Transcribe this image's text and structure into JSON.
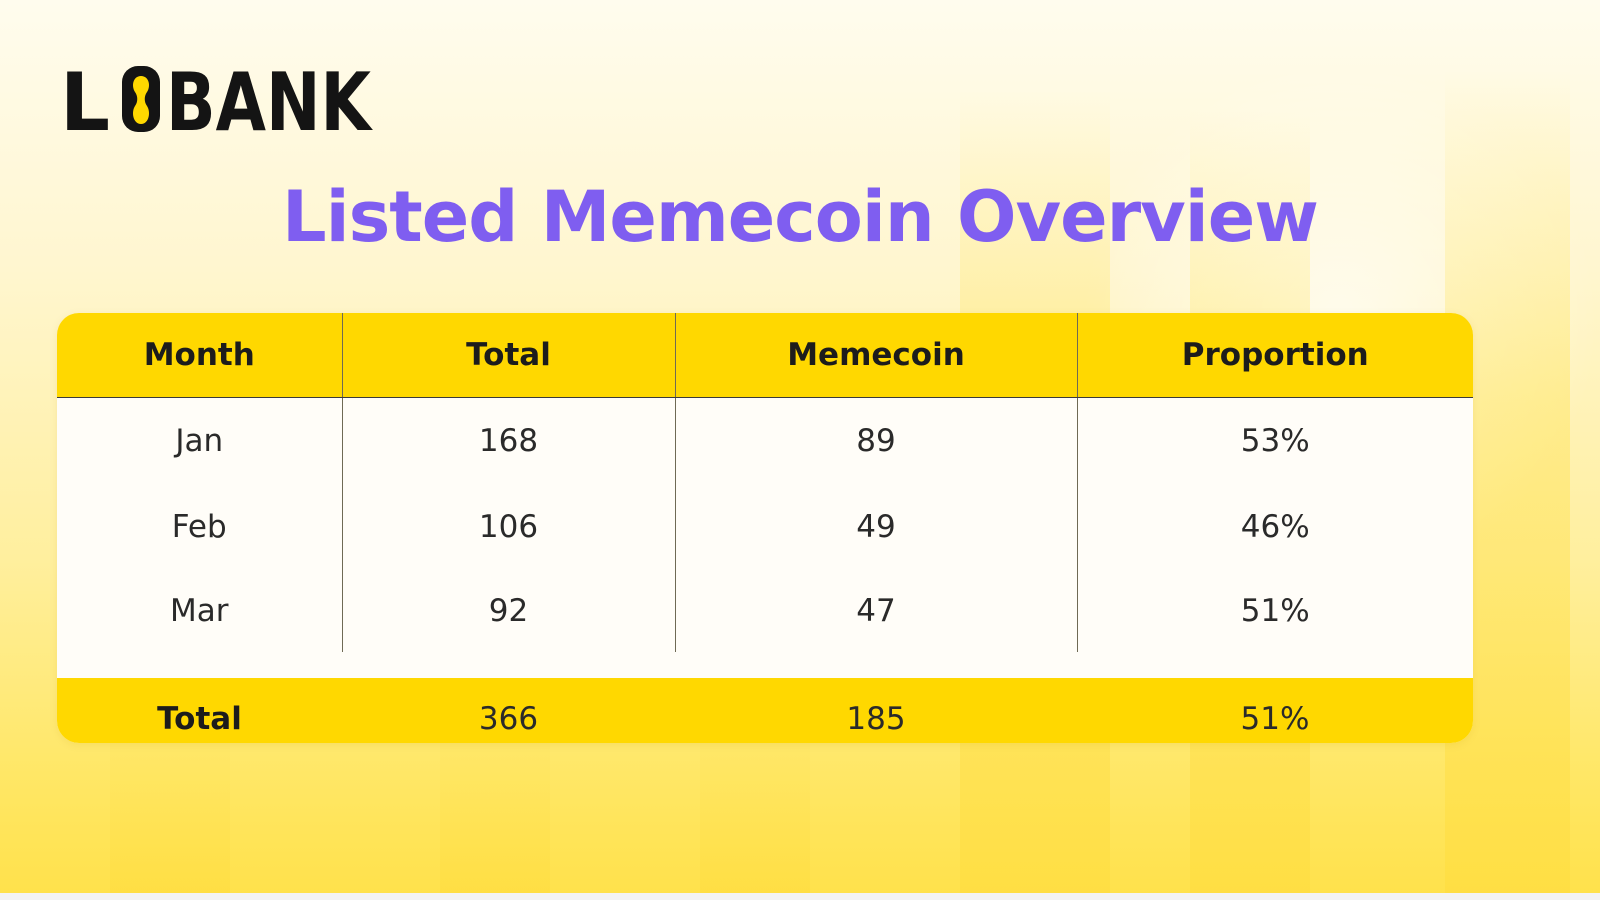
{
  "brand": {
    "name": "LBANK",
    "accent_color": "#FFD800"
  },
  "title": "Listed Memecoin Overview",
  "colors": {
    "title": "#7F5EF0",
    "header_bg": "#FFD800",
    "body_bg": "#FFFDF8",
    "total_bg": "#FFD800"
  },
  "chart_data": {
    "type": "table",
    "title": "Listed Memecoin Overview",
    "columns": [
      "Month",
      "Total",
      "Memecoin",
      "Proportion"
    ],
    "rows": [
      [
        "Jan",
        "168",
        "89",
        "53%"
      ],
      [
        "Feb",
        "106",
        "49",
        "46%"
      ],
      [
        "Mar",
        "92",
        "47",
        "51%"
      ]
    ],
    "total_row": [
      "Total",
      "366",
      "185",
      "51%"
    ]
  }
}
